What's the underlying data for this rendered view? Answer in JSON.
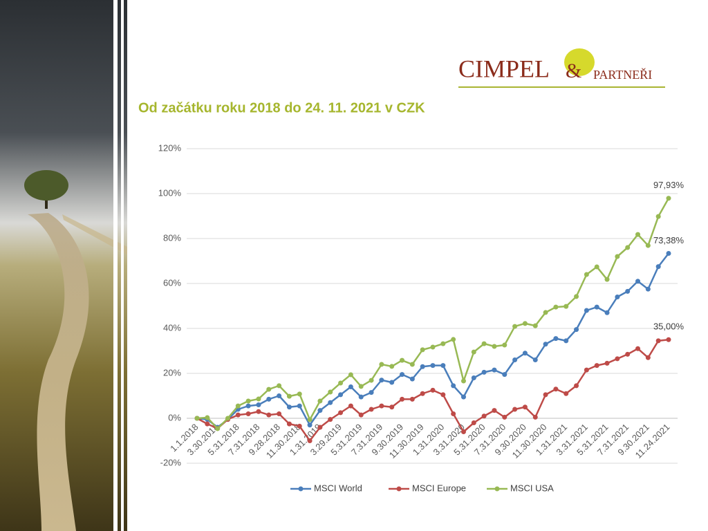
{
  "logo": {
    "name": "CIMPEL",
    "amp": "&",
    "suffix": "PARTNEŘI"
  },
  "chart_data": {
    "type": "line",
    "subtitle": "Od začátku roku 2018 do 24. 11. 2021 v CZK",
    "categories": [
      "1.1.2018",
      null,
      "3.30.2018",
      null,
      "5.31.2018",
      null,
      "7.31.2018",
      null,
      "9.28.2018",
      null,
      "11.30.2018",
      null,
      "1.31.2019",
      null,
      "3.29.2019",
      null,
      "5.31.2019",
      null,
      "7.31.2019",
      null,
      "9.30.2019",
      null,
      "11.30.2019",
      null,
      "1.31.2020",
      null,
      "3.31.2020",
      null,
      "5.31.2020",
      null,
      "7.31.2020",
      null,
      "9.30.2020",
      null,
      "11.30.2020",
      null,
      "1.31.2021",
      null,
      "3.31.2021",
      null,
      "5.31.2021",
      null,
      "7.31.2021",
      null,
      "9.30.2021",
      null,
      "11.24.2021"
    ],
    "series": [
      {
        "name": "MSCI World",
        "color": "#4a7ebb",
        "values": [
          0,
          -0.5,
          -4,
          -0.5,
          4,
          5.5,
          6,
          8.5,
          10,
          5,
          5.5,
          -3,
          3.5,
          7,
          10.5,
          14,
          9.5,
          11.5,
          17,
          16,
          19.5,
          17.5,
          23,
          23.5,
          23.5,
          14.5,
          9.5,
          18,
          20.5,
          21.5,
          19.5,
          26,
          29,
          26,
          33,
          35.5,
          34.5,
          39.5,
          48,
          49.5,
          47,
          54,
          56.5,
          61,
          57.5,
          67.5,
          73.38
        ],
        "value_labels": [
          null,
          null,
          null,
          null,
          null,
          null,
          null,
          null,
          null,
          null,
          null,
          null,
          null,
          null,
          null,
          null,
          null,
          null,
          null,
          null,
          null,
          null,
          null,
          null,
          null,
          null,
          null,
          null,
          null,
          null,
          null,
          null,
          null,
          null,
          null,
          null,
          null,
          null,
          null,
          null,
          null,
          null,
          null,
          null,
          null,
          null,
          "73,38%"
        ]
      },
      {
        "name": "MSCI Europe",
        "color": "#be4b48",
        "values": [
          0,
          -2.5,
          -4.5,
          -0.5,
          1.5,
          2,
          3,
          1.5,
          2,
          -2.5,
          -3.5,
          -10,
          -4,
          -0.5,
          2.5,
          5.5,
          1.5,
          4,
          5.5,
          5,
          8.5,
          8.5,
          11,
          12.5,
          10.5,
          2,
          -6,
          -2,
          1,
          3.5,
          0.5,
          4,
          5,
          0.5,
          10.5,
          13,
          11,
          14.5,
          21.5,
          23.5,
          24.5,
          26.5,
          28.5,
          31,
          27,
          34.5,
          35
        ],
        "value_labels": [
          null,
          null,
          null,
          null,
          null,
          null,
          null,
          null,
          null,
          null,
          null,
          null,
          null,
          null,
          null,
          null,
          null,
          null,
          null,
          null,
          null,
          null,
          null,
          null,
          null,
          null,
          null,
          null,
          null,
          null,
          null,
          null,
          null,
          null,
          null,
          null,
          null,
          null,
          null,
          null,
          null,
          null,
          null,
          null,
          null,
          null,
          "35,00%"
        ]
      },
      {
        "name": "MSCI USA",
        "color": "#98b954",
        "values": [
          0,
          0.3,
          -4.6,
          0,
          5.5,
          7.7,
          8.6,
          12.9,
          14.5,
          9.8,
          10.8,
          -0.6,
          7.7,
          11.7,
          15.7,
          19.4,
          14.2,
          16.9,
          24,
          23.1,
          25.8,
          24,
          30.5,
          31.7,
          33.2,
          35.1,
          16.6,
          29.5,
          33.2,
          32,
          32.6,
          40.9,
          42.2,
          41.2,
          47.1,
          49.5,
          49.8,
          54.2,
          64,
          67.4,
          61.8,
          72,
          76,
          81.8,
          76.9,
          89.8,
          97.93
        ],
        "value_labels": [
          null,
          null,
          null,
          null,
          null,
          null,
          null,
          null,
          null,
          null,
          null,
          null,
          null,
          null,
          null,
          null,
          null,
          null,
          null,
          null,
          null,
          null,
          null,
          null,
          null,
          null,
          null,
          null,
          null,
          null,
          null,
          null,
          null,
          null,
          null,
          null,
          null,
          null,
          null,
          null,
          null,
          null,
          null,
          null,
          null,
          null,
          "97,93%"
        ]
      }
    ],
    "ylim": [
      -20,
      120
    ],
    "yticks": [
      {
        "value": -20,
        "label": "-20%"
      },
      {
        "value": 0,
        "label": "0%"
      },
      {
        "value": 20,
        "label": "20%"
      },
      {
        "value": 40,
        "label": "40%"
      },
      {
        "value": 60,
        "label": "60%"
      },
      {
        "value": 80,
        "label": "80%"
      },
      {
        "value": 100,
        "label": "100%"
      },
      {
        "value": 120,
        "label": "120%"
      }
    ],
    "grid": true,
    "legend": "bottom"
  }
}
